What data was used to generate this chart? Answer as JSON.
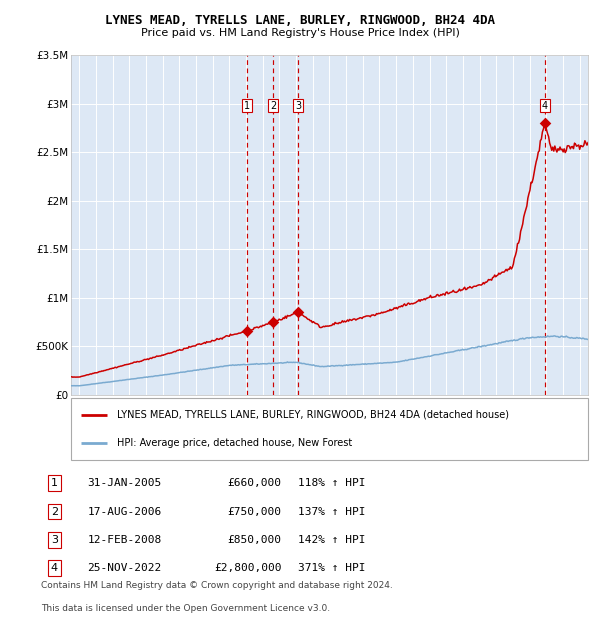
{
  "title": "LYNES MEAD, TYRELLS LANE, BURLEY, RINGWOOD, BH24 4DA",
  "subtitle": "Price paid vs. HM Land Registry's House Price Index (HPI)",
  "legend_line1": "LYNES MEAD, TYRELLS LANE, BURLEY, RINGWOOD, BH24 4DA (detached house)",
  "legend_line2": "HPI: Average price, detached house, New Forest",
  "footer1": "Contains HM Land Registry data © Crown copyright and database right 2024.",
  "footer2": "This data is licensed under the Open Government Licence v3.0.",
  "transactions": [
    {
      "num": 1,
      "date": "31-JAN-2005",
      "date_val": 2005.08,
      "price": 660000,
      "pct": "118% ↑ HPI"
    },
    {
      "num": 2,
      "date": "17-AUG-2006",
      "date_val": 2006.62,
      "price": 750000,
      "pct": "137% ↑ HPI"
    },
    {
      "num": 3,
      "date": "12-FEB-2008",
      "date_val": 2008.12,
      "price": 850000,
      "pct": "142% ↑ HPI"
    },
    {
      "num": 4,
      "date": "25-NOV-2022",
      "date_val": 2022.9,
      "price": 2800000,
      "pct": "371% ↑ HPI"
    }
  ],
  "hpi_color": "#7aaad0",
  "price_color": "#cc0000",
  "vline_color": "#cc0000",
  "bg_color": "#dde8f5",
  "grid_color": "#ffffff",
  "ylim": [
    0,
    3500000
  ],
  "xlim": [
    1994.5,
    2025.5
  ],
  "yticks": [
    0,
    500000,
    1000000,
    1500000,
    2000000,
    2500000,
    3000000,
    3500000
  ],
  "ytick_labels": [
    "£0",
    "£500K",
    "£1M",
    "£1.5M",
    "£2M",
    "£2.5M",
    "£3M",
    "£3.5M"
  ],
  "xticks": [
    1995,
    1996,
    1997,
    1998,
    1999,
    2000,
    2001,
    2002,
    2003,
    2004,
    2005,
    2006,
    2007,
    2008,
    2009,
    2010,
    2011,
    2012,
    2013,
    2014,
    2015,
    2016,
    2017,
    2018,
    2019,
    2020,
    2021,
    2022,
    2023,
    2024,
    2025
  ]
}
